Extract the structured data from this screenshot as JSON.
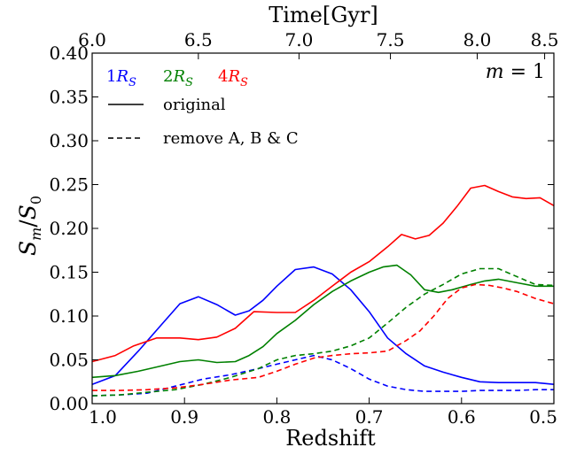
{
  "chart_data": {
    "type": "line",
    "title": "",
    "xlabel": "Redshift",
    "ylabel": "S_m/S_0",
    "top_xlabel": "Time[Gyr]",
    "panel_label": "m = 1",
    "xlim": [
      1.0,
      0.5
    ],
    "ylim": [
      0.0,
      0.4
    ],
    "x_ticks": [
      "1.0",
      "0.9",
      "0.8",
      "0.7",
      "0.6",
      "0.5"
    ],
    "y_ticks": [
      "0.00",
      "0.05",
      "0.10",
      "0.15",
      "0.20",
      "0.25",
      "0.30",
      "0.35",
      "0.40"
    ],
    "top_ticks": [
      "6.0",
      "6.5",
      "7.0",
      "7.5",
      "8.0",
      "8.5"
    ],
    "top_tick_redshift": [
      1.0,
      0.885,
      0.776,
      0.677,
      0.583,
      0.51
    ],
    "radius_legend": [
      {
        "label": "1R_S",
        "color": "#0000ff"
      },
      {
        "label": "2R_S",
        "color": "#008000"
      },
      {
        "label": "4R_S",
        "color": "#ff0000"
      }
    ],
    "style_legend": [
      {
        "label": "original",
        "dash": "solid"
      },
      {
        "label": "remove A, B & C",
        "dash": "dashed"
      }
    ],
    "series": [
      {
        "color": "#0000ff",
        "dash": "solid",
        "x": [
          1.0,
          0.975,
          0.95,
          0.925,
          0.905,
          0.885,
          0.865,
          0.845,
          0.83,
          0.815,
          0.8,
          0.78,
          0.76,
          0.74,
          0.72,
          0.7,
          0.68,
          0.66,
          0.64,
          0.62,
          0.6,
          0.58,
          0.56,
          0.54,
          0.52,
          0.5
        ],
        "y": [
          0.022,
          0.032,
          0.06,
          0.09,
          0.114,
          0.122,
          0.113,
          0.101,
          0.106,
          0.118,
          0.134,
          0.153,
          0.156,
          0.148,
          0.13,
          0.105,
          0.075,
          0.057,
          0.043,
          0.036,
          0.03,
          0.025,
          0.024,
          0.024,
          0.024,
          0.022
        ]
      },
      {
        "color": "#008000",
        "dash": "solid",
        "x": [
          1.0,
          0.975,
          0.95,
          0.925,
          0.905,
          0.885,
          0.865,
          0.845,
          0.83,
          0.815,
          0.8,
          0.78,
          0.76,
          0.74,
          0.72,
          0.7,
          0.685,
          0.67,
          0.655,
          0.64,
          0.625,
          0.61,
          0.59,
          0.575,
          0.56,
          0.54,
          0.52,
          0.5
        ],
        "y": [
          0.03,
          0.032,
          0.037,
          0.043,
          0.048,
          0.05,
          0.047,
          0.048,
          0.055,
          0.065,
          0.08,
          0.095,
          0.113,
          0.128,
          0.14,
          0.15,
          0.156,
          0.158,
          0.147,
          0.13,
          0.127,
          0.13,
          0.136,
          0.14,
          0.142,
          0.138,
          0.134,
          0.134
        ]
      },
      {
        "color": "#ff0000",
        "dash": "solid",
        "x": [
          1.0,
          0.975,
          0.955,
          0.93,
          0.905,
          0.885,
          0.865,
          0.845,
          0.825,
          0.8,
          0.78,
          0.76,
          0.74,
          0.72,
          0.7,
          0.68,
          0.665,
          0.65,
          0.635,
          0.62,
          0.605,
          0.59,
          0.575,
          0.56,
          0.545,
          0.53,
          0.515,
          0.5
        ],
        "y": [
          0.048,
          0.055,
          0.066,
          0.075,
          0.075,
          0.073,
          0.076,
          0.086,
          0.105,
          0.104,
          0.104,
          0.118,
          0.134,
          0.15,
          0.162,
          0.179,
          0.193,
          0.188,
          0.192,
          0.206,
          0.225,
          0.246,
          0.249,
          0.242,
          0.236,
          0.234,
          0.235,
          0.226
        ]
      },
      {
        "color": "#0000ff",
        "dash": "dashed",
        "x": [
          1.0,
          0.97,
          0.94,
          0.91,
          0.88,
          0.85,
          0.82,
          0.8,
          0.78,
          0.76,
          0.74,
          0.72,
          0.7,
          0.68,
          0.66,
          0.64,
          0.62,
          0.6,
          0.58,
          0.56,
          0.54,
          0.52,
          0.5
        ],
        "y": [
          0.009,
          0.01,
          0.012,
          0.02,
          0.028,
          0.033,
          0.04,
          0.045,
          0.05,
          0.055,
          0.05,
          0.04,
          0.028,
          0.02,
          0.016,
          0.014,
          0.014,
          0.014,
          0.015,
          0.015,
          0.015,
          0.016,
          0.016
        ]
      },
      {
        "color": "#008000",
        "dash": "dashed",
        "x": [
          1.0,
          0.97,
          0.94,
          0.91,
          0.88,
          0.85,
          0.82,
          0.8,
          0.78,
          0.76,
          0.74,
          0.72,
          0.7,
          0.68,
          0.66,
          0.64,
          0.62,
          0.6,
          0.58,
          0.56,
          0.54,
          0.52,
          0.5
        ],
        "y": [
          0.009,
          0.01,
          0.013,
          0.016,
          0.022,
          0.03,
          0.04,
          0.05,
          0.055,
          0.057,
          0.06,
          0.066,
          0.075,
          0.092,
          0.11,
          0.125,
          0.136,
          0.148,
          0.154,
          0.154,
          0.145,
          0.136,
          0.135
        ]
      },
      {
        "color": "#ff0000",
        "dash": "dashed",
        "x": [
          1.0,
          0.97,
          0.94,
          0.91,
          0.88,
          0.85,
          0.82,
          0.8,
          0.78,
          0.76,
          0.74,
          0.72,
          0.7,
          0.68,
          0.66,
          0.645,
          0.63,
          0.615,
          0.6,
          0.585,
          0.57,
          0.555,
          0.54,
          0.52,
          0.5
        ],
        "y": [
          0.015,
          0.015,
          0.016,
          0.018,
          0.022,
          0.027,
          0.03,
          0.037,
          0.045,
          0.052,
          0.055,
          0.057,
          0.058,
          0.06,
          0.072,
          0.083,
          0.1,
          0.12,
          0.132,
          0.136,
          0.135,
          0.132,
          0.128,
          0.12,
          0.114
        ]
      }
    ]
  }
}
